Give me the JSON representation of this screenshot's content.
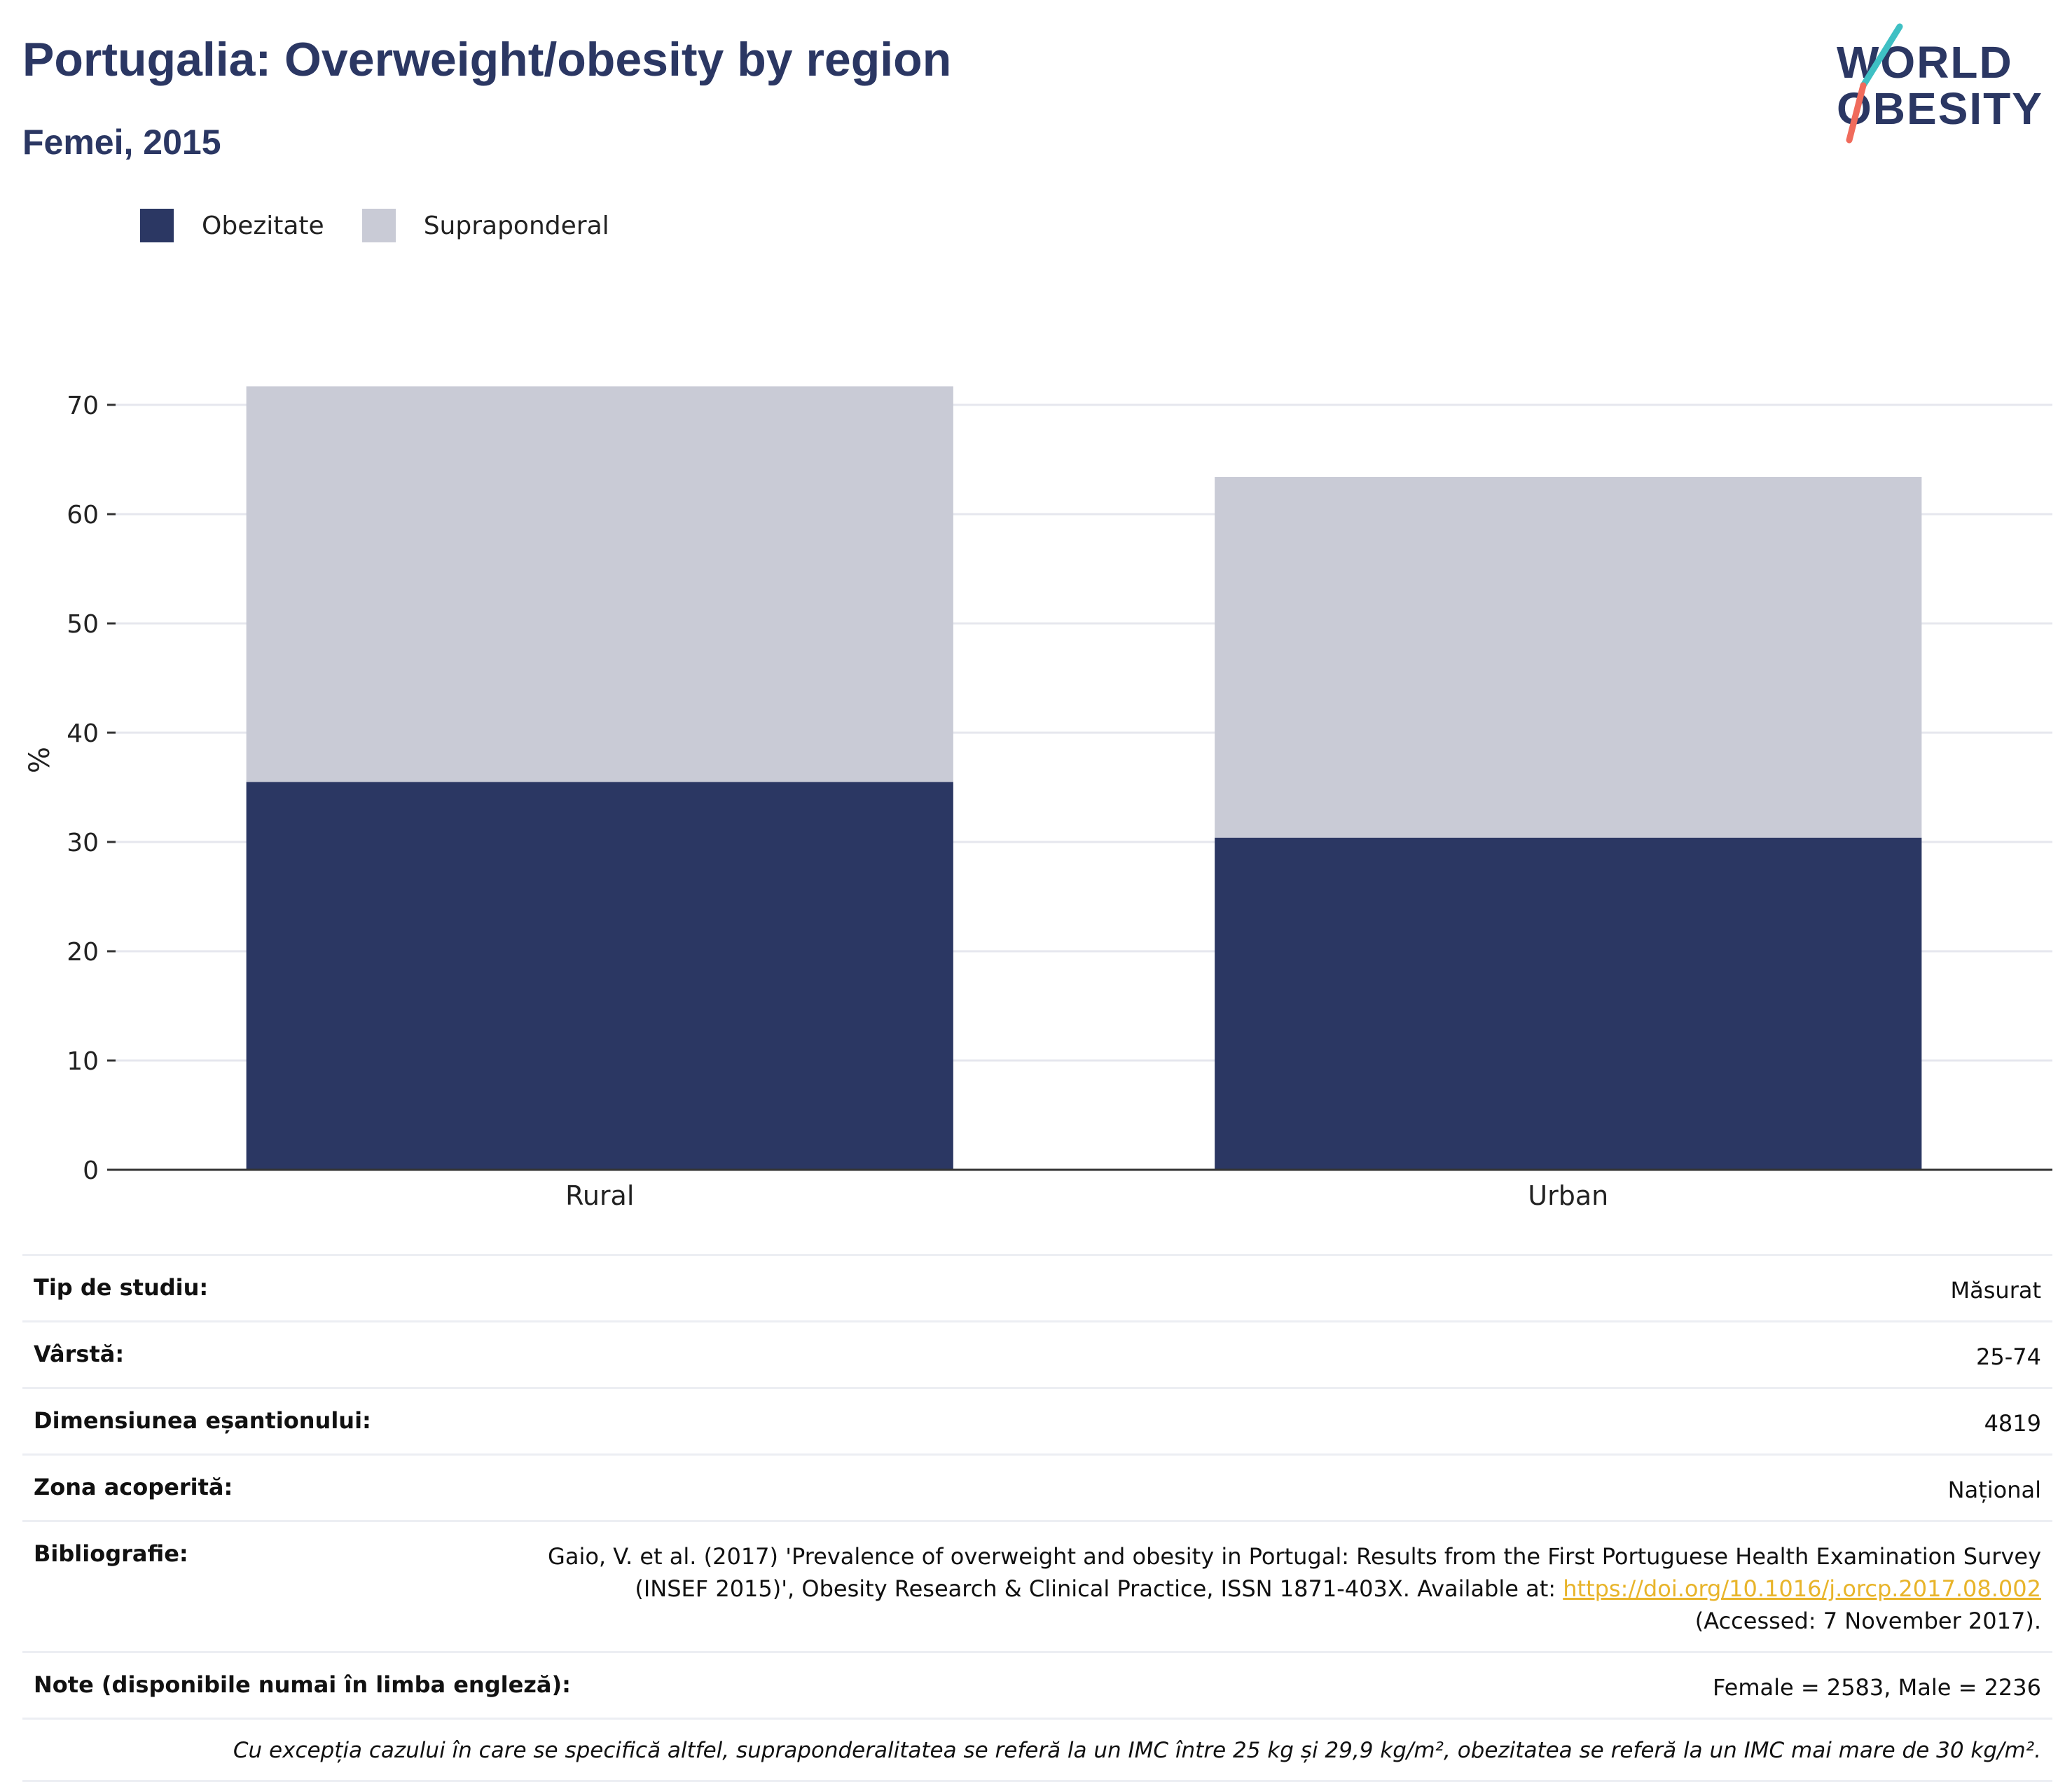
{
  "header": {
    "title": "Portugalia: Overweight/obesity by region",
    "subtitle": "Femei, 2015"
  },
  "logo": {
    "line1": "WORLD",
    "line2": "OBESITY"
  },
  "legend": [
    {
      "label": "Obezitate",
      "color": "#2b3763"
    },
    {
      "label": "Supraponderal",
      "color": "#c9cbd6"
    }
  ],
  "chart_data": {
    "type": "bar",
    "stacked": true,
    "categories": [
      "Rural",
      "Urban"
    ],
    "series": [
      {
        "name": "Obezitate",
        "color": "#2b3763",
        "values": [
          35.5,
          30.4
        ]
      },
      {
        "name": "Supraponderal",
        "color": "#c9cbd6",
        "values": [
          36.2,
          33.0
        ]
      }
    ],
    "ylabel": "%",
    "ylim": [
      0,
      75
    ],
    "yticks": [
      0,
      10,
      20,
      30,
      40,
      50,
      60,
      70
    ],
    "grid": true
  },
  "meta": {
    "rows": [
      {
        "label": "Tip de studiu:",
        "value": "Măsurat"
      },
      {
        "label": "Vârstă:",
        "value": "25-74"
      },
      {
        "label": "Dimensiunea eșantionului:",
        "value": "4819"
      },
      {
        "label": "Zona acoperită:",
        "value": "Național"
      }
    ],
    "bibliography": {
      "label": "Bibliografie:",
      "line1": "Gaio, V. et al. (2017) 'Prevalence of overweight and obesity in Portugal: Results from the First Portuguese Health Examination Survey",
      "line2": "(INSEF 2015)', Obesity Research & Clinical Practice, ISSN 1871-403X. Available at: ",
      "link": "https://doi.org/10.1016/j.orcp.2017.08.002",
      "line3": "(Accessed: 7 November 2017)."
    },
    "notes": {
      "label": "Note (disponibile numai în limba engleză):",
      "value": "Female = 2583, Male = 2236"
    },
    "footnote": "Cu excepția cazului în care se specifică altfel, supraponderalitatea se referă la un IMC între 25 kg și 29,9 kg/m², obezitatea se referă la un IMC mai mare de 30 kg/m²."
  }
}
